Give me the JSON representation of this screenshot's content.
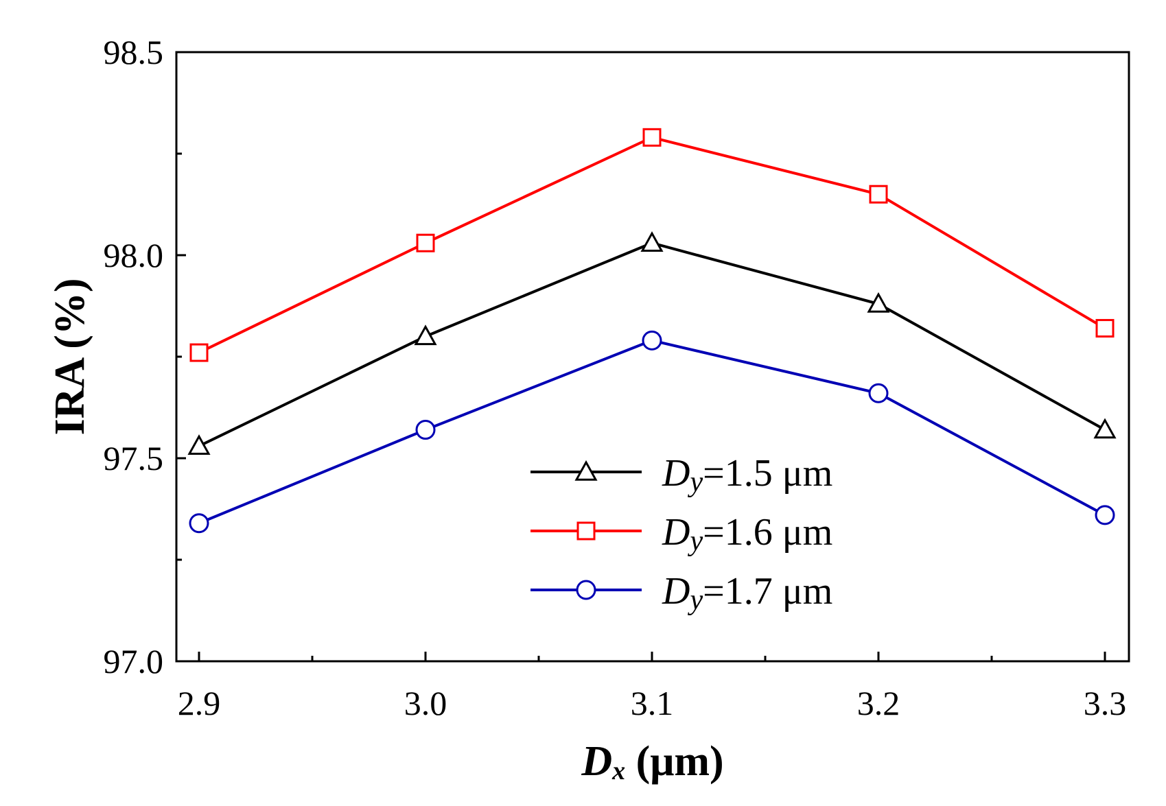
{
  "chart_data": {
    "type": "line",
    "title": "",
    "xlabel": {
      "main": "D",
      "sub": "x",
      "unit": " (μm)"
    },
    "ylabel": "IRA (%)",
    "x": [
      2.9,
      3.0,
      3.1,
      3.2,
      3.3
    ],
    "xlim": [
      2.9,
      3.3
    ],
    "ylim": [
      97.0,
      98.5
    ],
    "xticks": [
      "2.9",
      "3.0",
      "3.1",
      "3.2",
      "3.3"
    ],
    "yticks": [
      "97.0",
      "97.5",
      "98.0",
      "98.5"
    ],
    "ytick_values": [
      97.0,
      97.5,
      98.0,
      98.5
    ],
    "grid": false,
    "legend_position": "bottom-right",
    "series": [
      {
        "name": "Dy=1.5 μm",
        "label_main": "D",
        "label_sub": "y",
        "label_rest": "=1.5 μm",
        "color": "#000000",
        "marker": "triangle",
        "values": [
          97.53,
          97.8,
          98.03,
          97.88,
          97.57
        ]
      },
      {
        "name": "Dy=1.6 μm",
        "label_main": "D",
        "label_sub": "y",
        "label_rest": "=1.6 μm",
        "color": "#ff0000",
        "marker": "square",
        "values": [
          97.76,
          98.03,
          98.29,
          98.15,
          97.82
        ]
      },
      {
        "name": "Dy=1.7 μm",
        "label_main": "D",
        "label_sub": "y",
        "label_rest": "=1.7 μm",
        "color": "#0000b4",
        "marker": "circle",
        "values": [
          97.34,
          97.57,
          97.79,
          97.66,
          97.36
        ]
      }
    ]
  }
}
